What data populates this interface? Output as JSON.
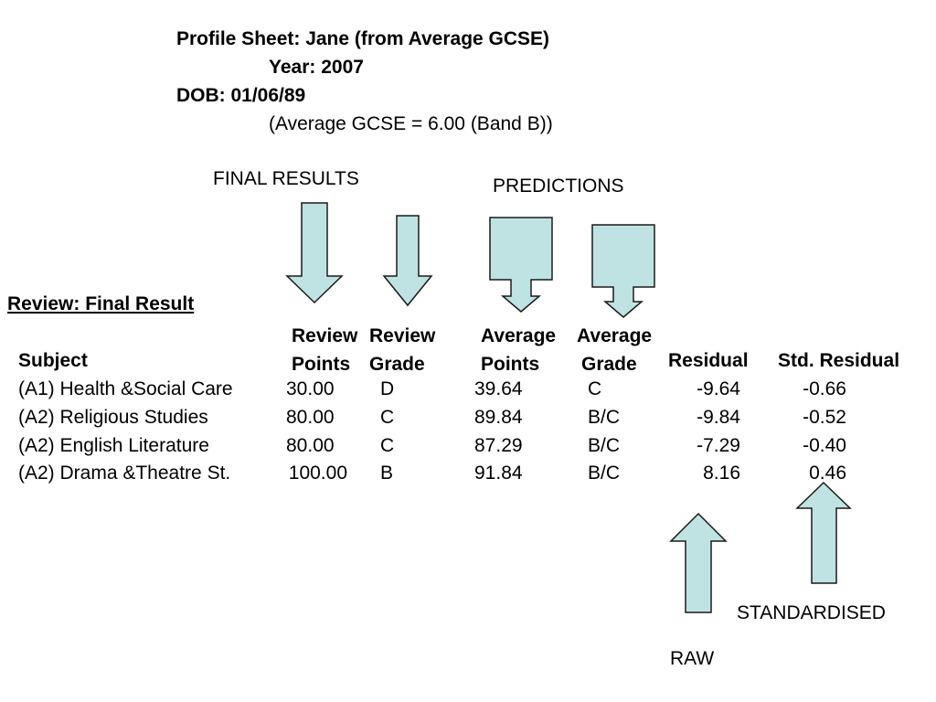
{
  "header": {
    "title": "Profile Sheet: Jane (from Average GCSE)",
    "year": "Year: 2007",
    "dob": "DOB: 01/06/89",
    "avg_gcse": "(Average GCSE = 6.00 (Band B))"
  },
  "labels": {
    "final_results": "FINAL RESULTS",
    "predictions": "PREDICTIONS",
    "standardised": "STANDARDISED",
    "raw": "RAW"
  },
  "review_title": "Review: Final  Result",
  "columns": {
    "subject": "Subject",
    "review_points": [
      "Review",
      "Points"
    ],
    "review_grade": [
      "Review",
      "Grade"
    ],
    "average_points": [
      "Average",
      "Points"
    ],
    "average_grade": [
      "Average",
      "Grade"
    ],
    "residual": "Residual",
    "std_residual": "Std. Residual"
  },
  "rows": [
    {
      "subject": "(A1) Health &Social Care",
      "points": "30.00",
      "grade": "D",
      "avg_points": "39.64",
      "avg_grade": "C",
      "residual": "-9.64",
      "std_residual": "-0.66"
    },
    {
      "subject": "(A2) Religious Studies",
      "points": "80.00",
      "grade": "C",
      "avg_points": "89.84",
      "avg_grade": "B/C",
      "residual": "-9.84",
      "std_residual": "-0.52"
    },
    {
      "subject": "(A2) English Literature",
      "points": "80.00",
      "grade": "C",
      "avg_points": "87.29",
      "avg_grade": "B/C",
      "residual": "-7.29",
      "std_residual": "-0.40"
    },
    {
      "subject": "(A2) Drama &Theatre St.",
      "points": "100.00",
      "grade": "B",
      "avg_points": "91.84",
      "avg_grade": "B/C",
      "residual": "8.16",
      "std_residual": "0.46"
    }
  ],
  "colors": {
    "arrow_fill": "#bfe3e3",
    "arrow_stroke": "#1a1a1a"
  }
}
